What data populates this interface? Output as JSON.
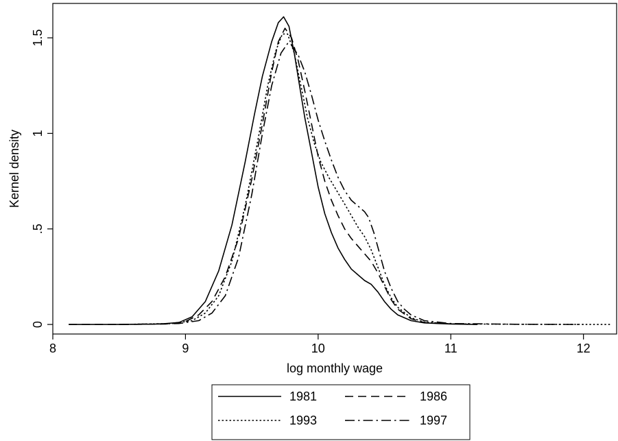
{
  "chart_data": {
    "type": "line",
    "xlabel": "log monthly wage",
    "ylabel": "Kernel density",
    "xlim": [
      8,
      12.25
    ],
    "ylim": [
      -0.05,
      1.68
    ],
    "xticks": [
      8,
      9,
      10,
      11,
      12
    ],
    "xtick_labels": [
      "8",
      "9",
      "10",
      "11",
      "12"
    ],
    "yticks": [
      0,
      0.5,
      1,
      1.5
    ],
    "ytick_labels": [
      "0",
      ".5",
      "1",
      "1.5"
    ],
    "grid": false,
    "legend_position": "bottom",
    "series": [
      {
        "name": "1981",
        "dash": "solid",
        "x": [
          8.12,
          8.5,
          8.8,
          8.95,
          9.05,
          9.15,
          9.25,
          9.35,
          9.45,
          9.52,
          9.58,
          9.65,
          9.7,
          9.74,
          9.78,
          9.82,
          9.86,
          9.9,
          9.95,
          10.0,
          10.05,
          10.1,
          10.15,
          10.2,
          10.25,
          10.3,
          10.35,
          10.4,
          10.45,
          10.5,
          10.55,
          10.6,
          10.7,
          10.8,
          11.0,
          11.2
        ],
        "values": [
          0,
          0,
          0.002,
          0.01,
          0.04,
          0.12,
          0.28,
          0.52,
          0.85,
          1.1,
          1.3,
          1.48,
          1.58,
          1.61,
          1.56,
          1.42,
          1.25,
          1.08,
          0.9,
          0.72,
          0.58,
          0.48,
          0.4,
          0.34,
          0.29,
          0.26,
          0.23,
          0.21,
          0.17,
          0.12,
          0.08,
          0.05,
          0.02,
          0.008,
          0.002,
          0
        ]
      },
      {
        "name": "1986",
        "dash": "dashed",
        "x": [
          8.12,
          8.5,
          8.85,
          9.0,
          9.1,
          9.2,
          9.3,
          9.4,
          9.5,
          9.58,
          9.65,
          9.7,
          9.75,
          9.8,
          9.85,
          9.9,
          9.95,
          10.0,
          10.05,
          10.1,
          10.15,
          10.2,
          10.25,
          10.3,
          10.35,
          10.4,
          10.45,
          10.5,
          10.55,
          10.6,
          10.7,
          10.8,
          11.0,
          11.2
        ],
        "values": [
          0,
          0,
          0.002,
          0.015,
          0.05,
          0.12,
          0.25,
          0.45,
          0.76,
          1.05,
          1.32,
          1.48,
          1.55,
          1.5,
          1.38,
          1.22,
          1.05,
          0.88,
          0.75,
          0.65,
          0.57,
          0.5,
          0.45,
          0.41,
          0.37,
          0.33,
          0.27,
          0.2,
          0.13,
          0.08,
          0.03,
          0.01,
          0.003,
          0
        ]
      },
      {
        "name": "1993",
        "dash": "dotted",
        "x": [
          8.5,
          8.9,
          9.05,
          9.15,
          9.25,
          9.35,
          9.45,
          9.55,
          9.62,
          9.68,
          9.73,
          9.77,
          9.82,
          9.87,
          9.92,
          9.97,
          10.02,
          10.08,
          10.14,
          10.2,
          10.25,
          10.3,
          10.35,
          10.4,
          10.45,
          10.5,
          10.55,
          10.6,
          10.7,
          10.8,
          11.0,
          11.5,
          12.2
        ],
        "values": [
          0,
          0.005,
          0.02,
          0.06,
          0.15,
          0.33,
          0.62,
          0.98,
          1.25,
          1.43,
          1.52,
          1.52,
          1.42,
          1.25,
          1.08,
          0.95,
          0.85,
          0.77,
          0.7,
          0.63,
          0.57,
          0.51,
          0.46,
          0.39,
          0.3,
          0.21,
          0.14,
          0.09,
          0.035,
          0.012,
          0.003,
          0.001,
          0
        ]
      },
      {
        "name": "1997",
        "dash": "dash-dot",
        "x": [
          8.5,
          8.95,
          9.1,
          9.2,
          9.3,
          9.4,
          9.5,
          9.58,
          9.65,
          9.72,
          9.77,
          9.8,
          9.85,
          9.9,
          9.95,
          10.0,
          10.05,
          10.1,
          10.15,
          10.2,
          10.25,
          10.3,
          10.35,
          10.38,
          10.42,
          10.46,
          10.5,
          10.55,
          10.6,
          10.65,
          10.7,
          10.8,
          11.0,
          11.5,
          12.0
        ],
        "values": [
          0,
          0.005,
          0.02,
          0.06,
          0.15,
          0.35,
          0.68,
          1.0,
          1.25,
          1.42,
          1.47,
          1.46,
          1.41,
          1.32,
          1.2,
          1.07,
          0.96,
          0.86,
          0.77,
          0.7,
          0.65,
          0.62,
          0.59,
          0.56,
          0.48,
          0.38,
          0.28,
          0.19,
          0.12,
          0.08,
          0.05,
          0.02,
          0.005,
          0.001,
          0
        ]
      }
    ]
  }
}
